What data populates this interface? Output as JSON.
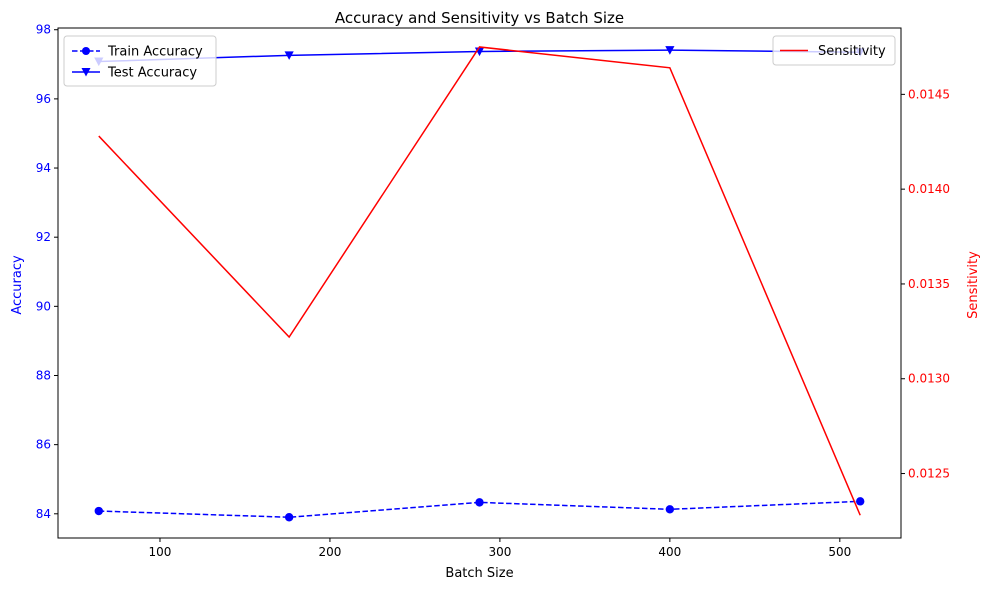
{
  "chart_data": {
    "type": "line",
    "title": "Accuracy and Sensitivity vs Batch Size",
    "xlabel": "Batch Size",
    "ylabel_left": "Accuracy",
    "ylabel_right": "Sensitivity",
    "x": [
      64,
      176,
      288,
      400,
      512
    ],
    "xlim": [
      40,
      536
    ],
    "xticks": [
      100,
      200,
      300,
      400,
      500
    ],
    "ylim_left": [
      83.3,
      98.05
    ],
    "yticks_left": [
      84,
      86,
      88,
      90,
      92,
      94,
      96,
      98
    ],
    "ylim_right": [
      0.01216,
      0.01485
    ],
    "yticks_right": [
      "0.0125",
      "0.0130",
      "0.0135",
      "0.0140",
      "0.0145"
    ],
    "grid": false,
    "left_legend_position": "upper-left",
    "right_legend_position": "upper-right",
    "series": [
      {
        "name": "Train Accuracy",
        "axis": "left",
        "color": "#0000ff",
        "style": "dashed",
        "marker": "circle",
        "values": [
          84.08,
          83.9,
          84.33,
          84.13,
          84.36
        ]
      },
      {
        "name": "Test Accuracy",
        "axis": "left",
        "color": "#0000ff",
        "style": "solid",
        "marker": "triangle-down",
        "values": [
          97.08,
          97.26,
          97.37,
          97.41,
          97.35
        ]
      },
      {
        "name": "Sensitivity",
        "axis": "right",
        "color": "#ff0000",
        "style": "solid",
        "marker": "none",
        "values": [
          0.01428,
          0.01322,
          0.01475,
          0.01464,
          0.01228
        ]
      }
    ]
  }
}
